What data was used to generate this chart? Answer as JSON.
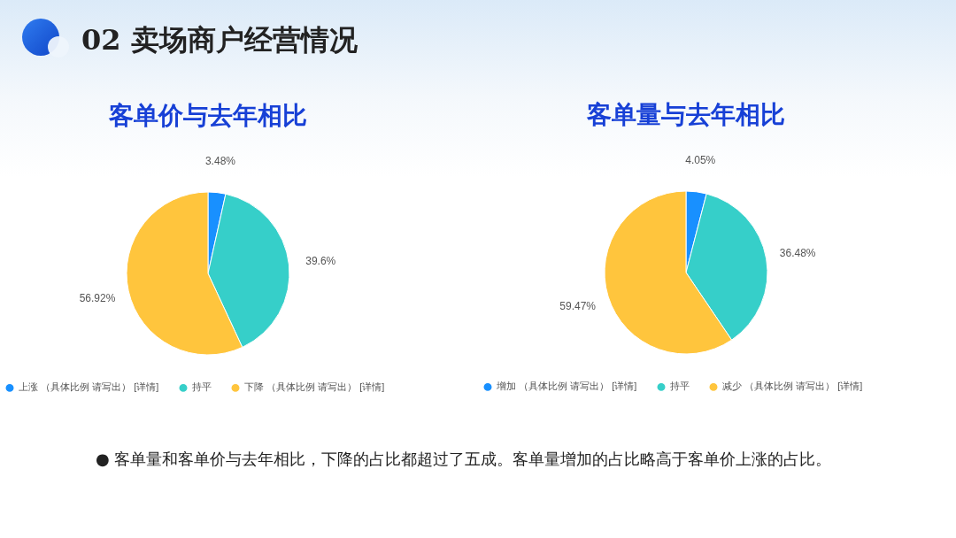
{
  "chart_data": [
    {
      "type": "pie",
      "title": "客单价与去年相比",
      "categories": [
        "上涨 （具体比例 请写出） [详情]",
        "持平",
        "下降 （具体比例 请写出） [详情]"
      ],
      "values": [
        3.48,
        39.6,
        56.92
      ],
      "value_labels": [
        "3.48%",
        "39.6%",
        "56.92%"
      ],
      "colors": [
        "#1890ff",
        "#36cfc9",
        "#ffc53d"
      ],
      "legend": "bottom",
      "annotations": [
        "02 卖场商户经营情况"
      ]
    },
    {
      "type": "pie",
      "title": "客单量与去年相比",
      "categories": [
        "增加 （具体比例 请写出） [详情]",
        "持平",
        "减少 （具体比例 请写出） [详情]"
      ],
      "values": [
        4.05,
        36.48,
        59.47
      ],
      "value_labels": [
        "4.05%",
        "36.48%",
        "59.47%"
      ],
      "colors": [
        "#1890ff",
        "#36cfc9",
        "#ffc53d"
      ],
      "legend": "bottom",
      "annotations": [
        "● 客单量和客单价与去年相比，下降的占比都超过了五成。客单量增加的占比略高于客单价上涨的占比。"
      ]
    }
  ]
}
